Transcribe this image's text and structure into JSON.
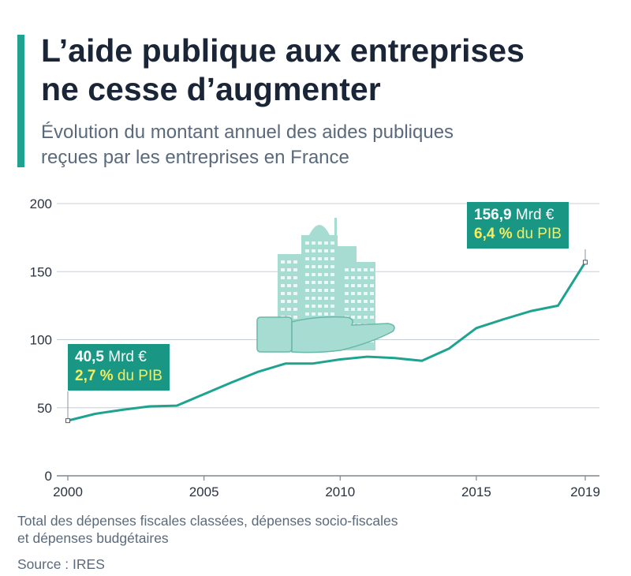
{
  "header": {
    "title_line1": "L’aide publique aux entreprises",
    "title_line2": "ne cesse d’augmenter",
    "subtitle_line1": "Évolution du montant annuel des aides publiques",
    "subtitle_line2": "reçues par les entreprises en France"
  },
  "colors": {
    "accent": "#1ea391",
    "line": "#1ea391",
    "callout_bg": "#1a9784",
    "highlight": "#f5ec5f",
    "grid": "#c9ced4",
    "illustration": "#a6dcd2"
  },
  "callouts": {
    "start": {
      "value": "40,5",
      "unit": "Mrd €",
      "pct": "2,7 %",
      "pct_rest": "du PIB"
    },
    "end": {
      "value": "156,9",
      "unit": "Mrd €",
      "pct": "6,4 %",
      "pct_rest": "du PIB"
    }
  },
  "footer": {
    "note_line1": "Total des dépenses fiscales classées, dépenses socio-fiscales",
    "note_line2": "et dépenses budgétaires",
    "source": "Source : IRES"
  },
  "illustration": {
    "icon": "building-on-hand-icon"
  },
  "chart_data": {
    "type": "line",
    "x": [
      2000,
      2001,
      2002,
      2003,
      2004,
      2005,
      2006,
      2007,
      2008,
      2009,
      2010,
      2011,
      2012,
      2013,
      2014,
      2015,
      2016,
      2017,
      2018,
      2019
    ],
    "series": [
      {
        "values": [
          40.5,
          45.5,
          48.5,
          51,
          51.5,
          60,
          68.5,
          76.5,
          82.5,
          82.5,
          85.5,
          87.5,
          86.5,
          84.5,
          93.5,
          108.5,
          115,
          121,
          125,
          156.9
        ]
      }
    ],
    "x_ticks": [
      "2000",
      "2005",
      "2010",
      "2015",
      "2019"
    ],
    "y_ticks": [
      "0",
      "50",
      "100",
      "150",
      "200"
    ],
    "xlim": [
      2000,
      2019
    ],
    "ylim": [
      0,
      200
    ],
    "grid": "horizontal"
  }
}
